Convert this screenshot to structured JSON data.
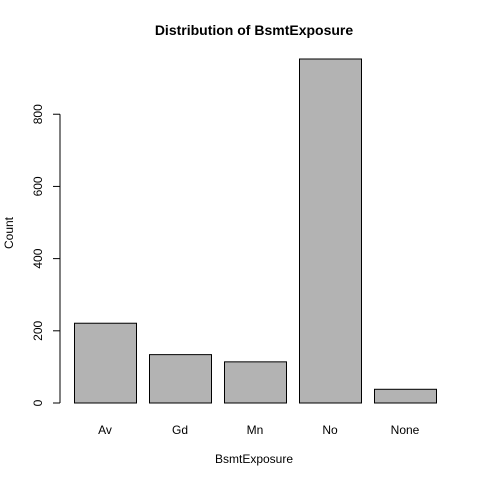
{
  "chart_data": {
    "type": "bar",
    "title": "Distribution of BsmtExposure",
    "xlabel": "BsmtExposure",
    "ylabel": "Count",
    "categories": [
      "Av",
      "Gd",
      "Mn",
      "No",
      "None"
    ],
    "values": [
      221,
      134,
      114,
      953,
      38
    ],
    "ylim": [
      0,
      953
    ],
    "yticks": [
      0,
      200,
      400,
      600,
      800
    ],
    "grid": false,
    "legend": "none",
    "bar_color": "#b3b3b3",
    "bar_border_color": "#000000"
  }
}
